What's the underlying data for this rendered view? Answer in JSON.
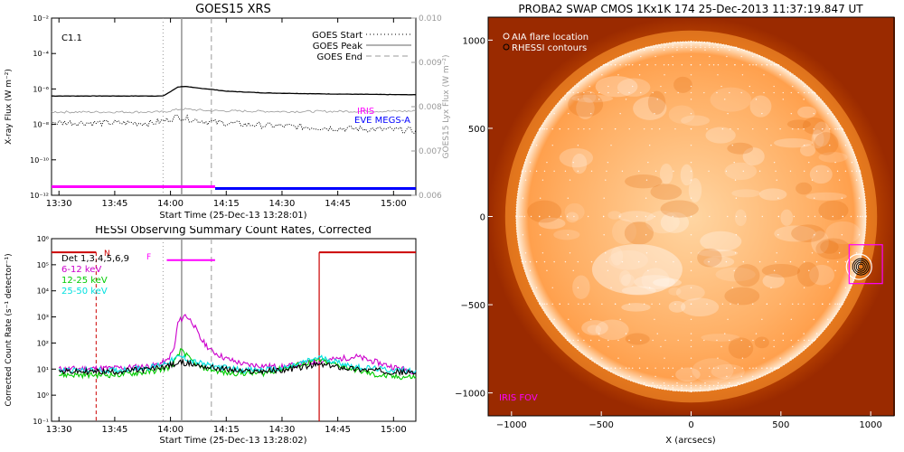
{
  "chart_data": [
    {
      "id": "goes",
      "type": "line",
      "title": "GOES15 XRS",
      "xlabel": "Start Time (25-Dec-13 13:28:01)",
      "ylabel": "X-ray Flux (W m⁻²)",
      "y2label": "GOES15 Lyx Flux (W m⁻²)",
      "x_ticks": [
        "13:30",
        "13:45",
        "14:00",
        "14:15",
        "14:30",
        "14:45",
        "15:00"
      ],
      "y_ticks": [
        "10⁻²",
        "10⁻⁴",
        "10⁻⁶",
        "10⁻⁸",
        "10⁻¹⁰",
        "10⁻¹²"
      ],
      "y2_ticks": [
        "0.010",
        "0.009",
        "0.008",
        "0.007",
        "0.006"
      ],
      "y_scale": "log",
      "ylim": [
        1e-12,
        0.01
      ],
      "y2lim": [
        0.006,
        0.01
      ],
      "xlim_minutes": [
        808,
        906
      ],
      "class_label": "C1.1",
      "legend": [
        {
          "label": "GOES Start",
          "style": "dotted"
        },
        {
          "label": "GOES Peak",
          "style": "solid"
        },
        {
          "label": "GOES End",
          "style": "dashed"
        }
      ],
      "event_lines": {
        "start": 838,
        "peak": 843,
        "end": 851
      },
      "series": [
        {
          "name": "long",
          "color": "#000000",
          "style": "solid",
          "x": [
            808,
            838,
            840,
            842,
            844,
            846,
            850,
            855,
            865,
            880,
            895,
            906
          ],
          "y": [
            4e-07,
            4e-07,
            7e-07,
            1.3e-06,
            1.4e-06,
            1.2e-06,
            1e-06,
            7.5e-07,
            6e-07,
            5.3e-07,
            4.9e-07,
            4.7e-07
          ]
        },
        {
          "name": "lyx",
          "color": "#999999",
          "style": "solid",
          "axis": "y2",
          "x": [
            808,
            838,
            843,
            850,
            870,
            906
          ],
          "y": [
            0.00788,
            0.00788,
            0.00795,
            0.00791,
            0.00789,
            0.0079
          ]
        },
        {
          "name": "short",
          "color": "#000000",
          "style": "dotted",
          "x": [
            808,
            820,
            835,
            838,
            842,
            844,
            850,
            860,
            870,
            885,
            900,
            906
          ],
          "y": [
            1.3e-08,
            1.2e-08,
            1.2e-08,
            1.5e-08,
            2.8e-08,
            2.2e-08,
            1.4e-08,
            1e-08,
            8e-09,
            6e-09,
            5e-09,
            4.5e-09
          ]
        }
      ],
      "bars": [
        {
          "name": "IRIS",
          "color": "#ff00ff",
          "x0": 808,
          "x1": 852
        },
        {
          "name": "EVE MEGS-A",
          "color": "#0000ff",
          "x0": 852,
          "x1": 906
        }
      ]
    },
    {
      "id": "hessi",
      "type": "line",
      "title": "HESSI Observing Summary Count Rates, Corrected",
      "xlabel": "Start Time (25-Dec-13 13:28:02)",
      "ylabel": "Corrected Count Rate (s⁻¹ detector⁻¹)",
      "x_ticks": [
        "13:30",
        "13:45",
        "14:00",
        "14:15",
        "14:30",
        "14:45",
        "15:00"
      ],
      "y_ticks": [
        "10⁶",
        "10⁵",
        "10⁴",
        "10³",
        "10²",
        "10¹",
        "10⁰",
        "10⁻¹"
      ],
      "y_scale": "log",
      "ylim": [
        0.1,
        1000000.0
      ],
      "xlim_minutes": [
        808,
        906
      ],
      "detectors": "Det 1,3,4,5,6,9",
      "night_marker": "N",
      "flare_marker": "F",
      "event_lines": {
        "start": 838,
        "peak": 843,
        "end": 851
      },
      "night_bars": [
        [
          808,
          820
        ],
        [
          880,
          906
        ]
      ],
      "flare_bar": [
        839,
        852
      ],
      "series": [
        {
          "name": "6-12 keV",
          "color": "#cc00cc",
          "x": [
            810,
            825,
            835,
            839,
            841,
            842,
            844,
            846,
            848,
            851,
            855,
            860,
            870,
            880,
            890,
            900,
            906
          ],
          "y": [
            10,
            11,
            13,
            20,
            60,
            600,
            1200,
            600,
            150,
            50,
            25,
            15,
            12,
            20,
            30,
            12,
            8
          ]
        },
        {
          "name": "12-25 keV",
          "color": "#00cc00",
          "x": [
            810,
            825,
            835,
            840,
            842,
            843,
            845,
            848,
            855,
            865,
            880,
            895,
            900,
            906
          ],
          "y": [
            6,
            6,
            8,
            12,
            30,
            60,
            25,
            12,
            7,
            7,
            22,
            6,
            5,
            5
          ]
        },
        {
          "name": "25-50 keV",
          "color": "#00e0e0",
          "x": [
            810,
            825,
            835,
            840,
            842,
            843,
            845,
            850,
            860,
            870,
            880,
            890,
            900,
            906
          ],
          "y": [
            9,
            9,
            12,
            20,
            28,
            30,
            22,
            14,
            9,
            10,
            28,
            12,
            9,
            9
          ]
        },
        {
          "name": "black",
          "color": "#000000",
          "x": [
            810,
            825,
            835,
            840,
            843,
            850,
            860,
            870,
            880,
            890,
            900,
            906
          ],
          "y": [
            8,
            8,
            10,
            14,
            18,
            12,
            8,
            9,
            15,
            10,
            8,
            7
          ]
        }
      ]
    },
    {
      "id": "swap",
      "type": "image",
      "title": "PROBA2 SWAP CMOS 1Kx1K 174 25-Dec-2013 11:37:19.847 UT",
      "xlabel": "X (arcsecs)",
      "x_ticks": [
        "−1000",
        "−500",
        "0",
        "500",
        "1000"
      ],
      "y_ticks": [
        "1000",
        "500",
        "0",
        "−500",
        "−1000"
      ],
      "xlim": [
        -1130,
        1130
      ],
      "ylim": [
        -1130,
        1130
      ],
      "legend": [
        {
          "label": "AIA flare location",
          "marker": "circle"
        },
        {
          "label": "RHESSI contours",
          "marker": "circle"
        }
      ],
      "fov_label": "IRIS FOV",
      "flare_location": [
        935,
        -285
      ],
      "fov_box": [
        [
          880,
          -380
        ],
        [
          1065,
          -160
        ]
      ]
    }
  ]
}
